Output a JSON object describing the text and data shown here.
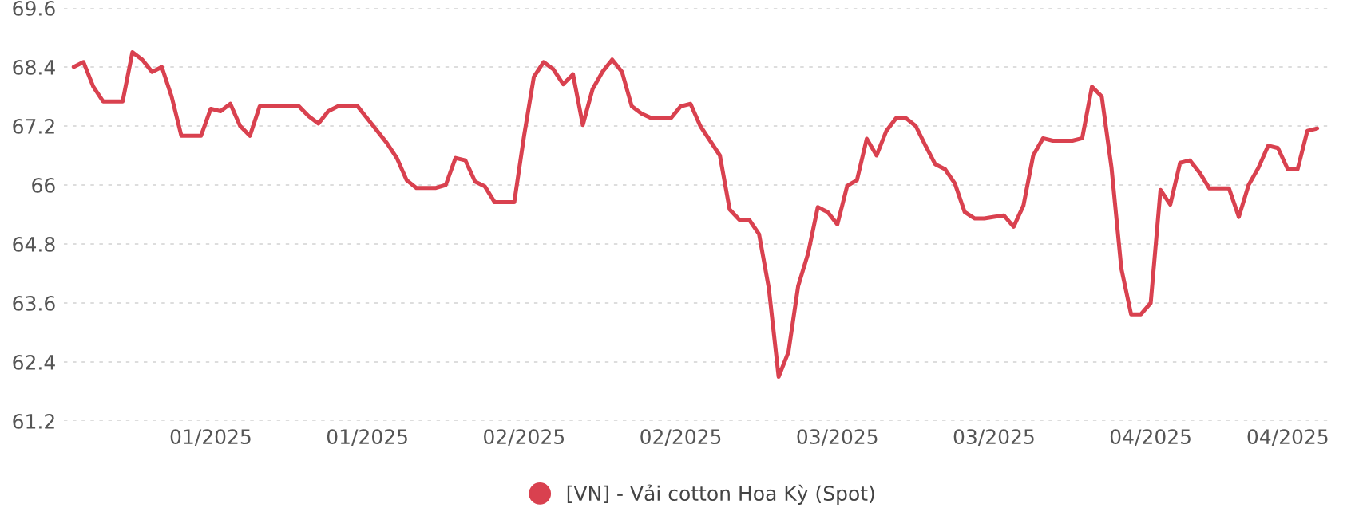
{
  "chart_data": {
    "type": "line",
    "categories": [
      null,
      null,
      null,
      null,
      null,
      null,
      null,
      null,
      null,
      null,
      null,
      null,
      null,
      null,
      "01/2025",
      null,
      null,
      null,
      null,
      null,
      null,
      null,
      null,
      null,
      null,
      null,
      null,
      null,
      null,
      null,
      "01/2025",
      null,
      null,
      null,
      null,
      null,
      null,
      null,
      null,
      null,
      null,
      null,
      null,
      null,
      null,
      null,
      "02/2025",
      null,
      null,
      null,
      null,
      null,
      null,
      null,
      null,
      null,
      null,
      null,
      null,
      null,
      null,
      null,
      "02/2025",
      null,
      null,
      null,
      null,
      null,
      null,
      null,
      null,
      null,
      null,
      null,
      null,
      null,
      null,
      null,
      "03/2025",
      null,
      null,
      null,
      null,
      null,
      null,
      null,
      null,
      null,
      null,
      null,
      null,
      null,
      null,
      null,
      "03/2025",
      null,
      null,
      null,
      null,
      null,
      null,
      null,
      null,
      null,
      null,
      null,
      null,
      null,
      null,
      null,
      "04/2025",
      null,
      null,
      null,
      null,
      null,
      null,
      null,
      null,
      null,
      null,
      null,
      null,
      null,
      "04/2025",
      null,
      null,
      null
    ],
    "series": [
      {
        "name": "[VN] - Vải cotton Hoa Kỳ (Spot)",
        "color": "#d9414f",
        "values": [
          68.4,
          68.5,
          68.0,
          67.7,
          67.7,
          67.7,
          68.7,
          68.55,
          68.3,
          68.4,
          67.8,
          67.0,
          67.0,
          67.0,
          67.55,
          67.5,
          67.65,
          67.2,
          67.0,
          67.6,
          67.6,
          67.6,
          67.6,
          67.6,
          67.4,
          67.25,
          67.5,
          67.6,
          67.6,
          67.6,
          67.35,
          67.1,
          66.85,
          66.55,
          66.1,
          65.94,
          65.94,
          65.94,
          66.0,
          66.55,
          66.5,
          66.07,
          65.97,
          65.65,
          65.65,
          65.65,
          67.0,
          68.2,
          68.5,
          68.35,
          68.05,
          68.25,
          67.22,
          67.95,
          68.3,
          68.55,
          68.3,
          67.6,
          67.45,
          67.36,
          67.36,
          67.36,
          67.6,
          67.65,
          67.2,
          66.9,
          66.6,
          65.5,
          65.29,
          65.29,
          65.0,
          63.9,
          62.1,
          62.6,
          63.95,
          64.6,
          65.55,
          65.45,
          65.2,
          65.98,
          66.1,
          66.94,
          66.6,
          67.1,
          67.36,
          67.36,
          67.2,
          66.8,
          66.42,
          66.32,
          66.03,
          65.45,
          65.32,
          65.32,
          65.35,
          65.38,
          65.15,
          65.58,
          66.6,
          66.95,
          66.9,
          66.9,
          66.9,
          66.95,
          68.0,
          67.8,
          66.35,
          64.3,
          63.37,
          63.37,
          63.6,
          65.9,
          65.6,
          66.45,
          66.5,
          66.25,
          65.93,
          65.93,
          65.93,
          65.35,
          66.0,
          66.35,
          66.8,
          66.75,
          66.32,
          66.32,
          67.1,
          67.15
        ]
      }
    ],
    "ylim": [
      61.2,
      69.6
    ],
    "yticks": [
      61.2,
      62.4,
      63.6,
      64.8,
      66,
      67.2,
      68.4,
      69.6
    ],
    "grid": "y",
    "legend": "bottom",
    "line_style": "solid"
  }
}
